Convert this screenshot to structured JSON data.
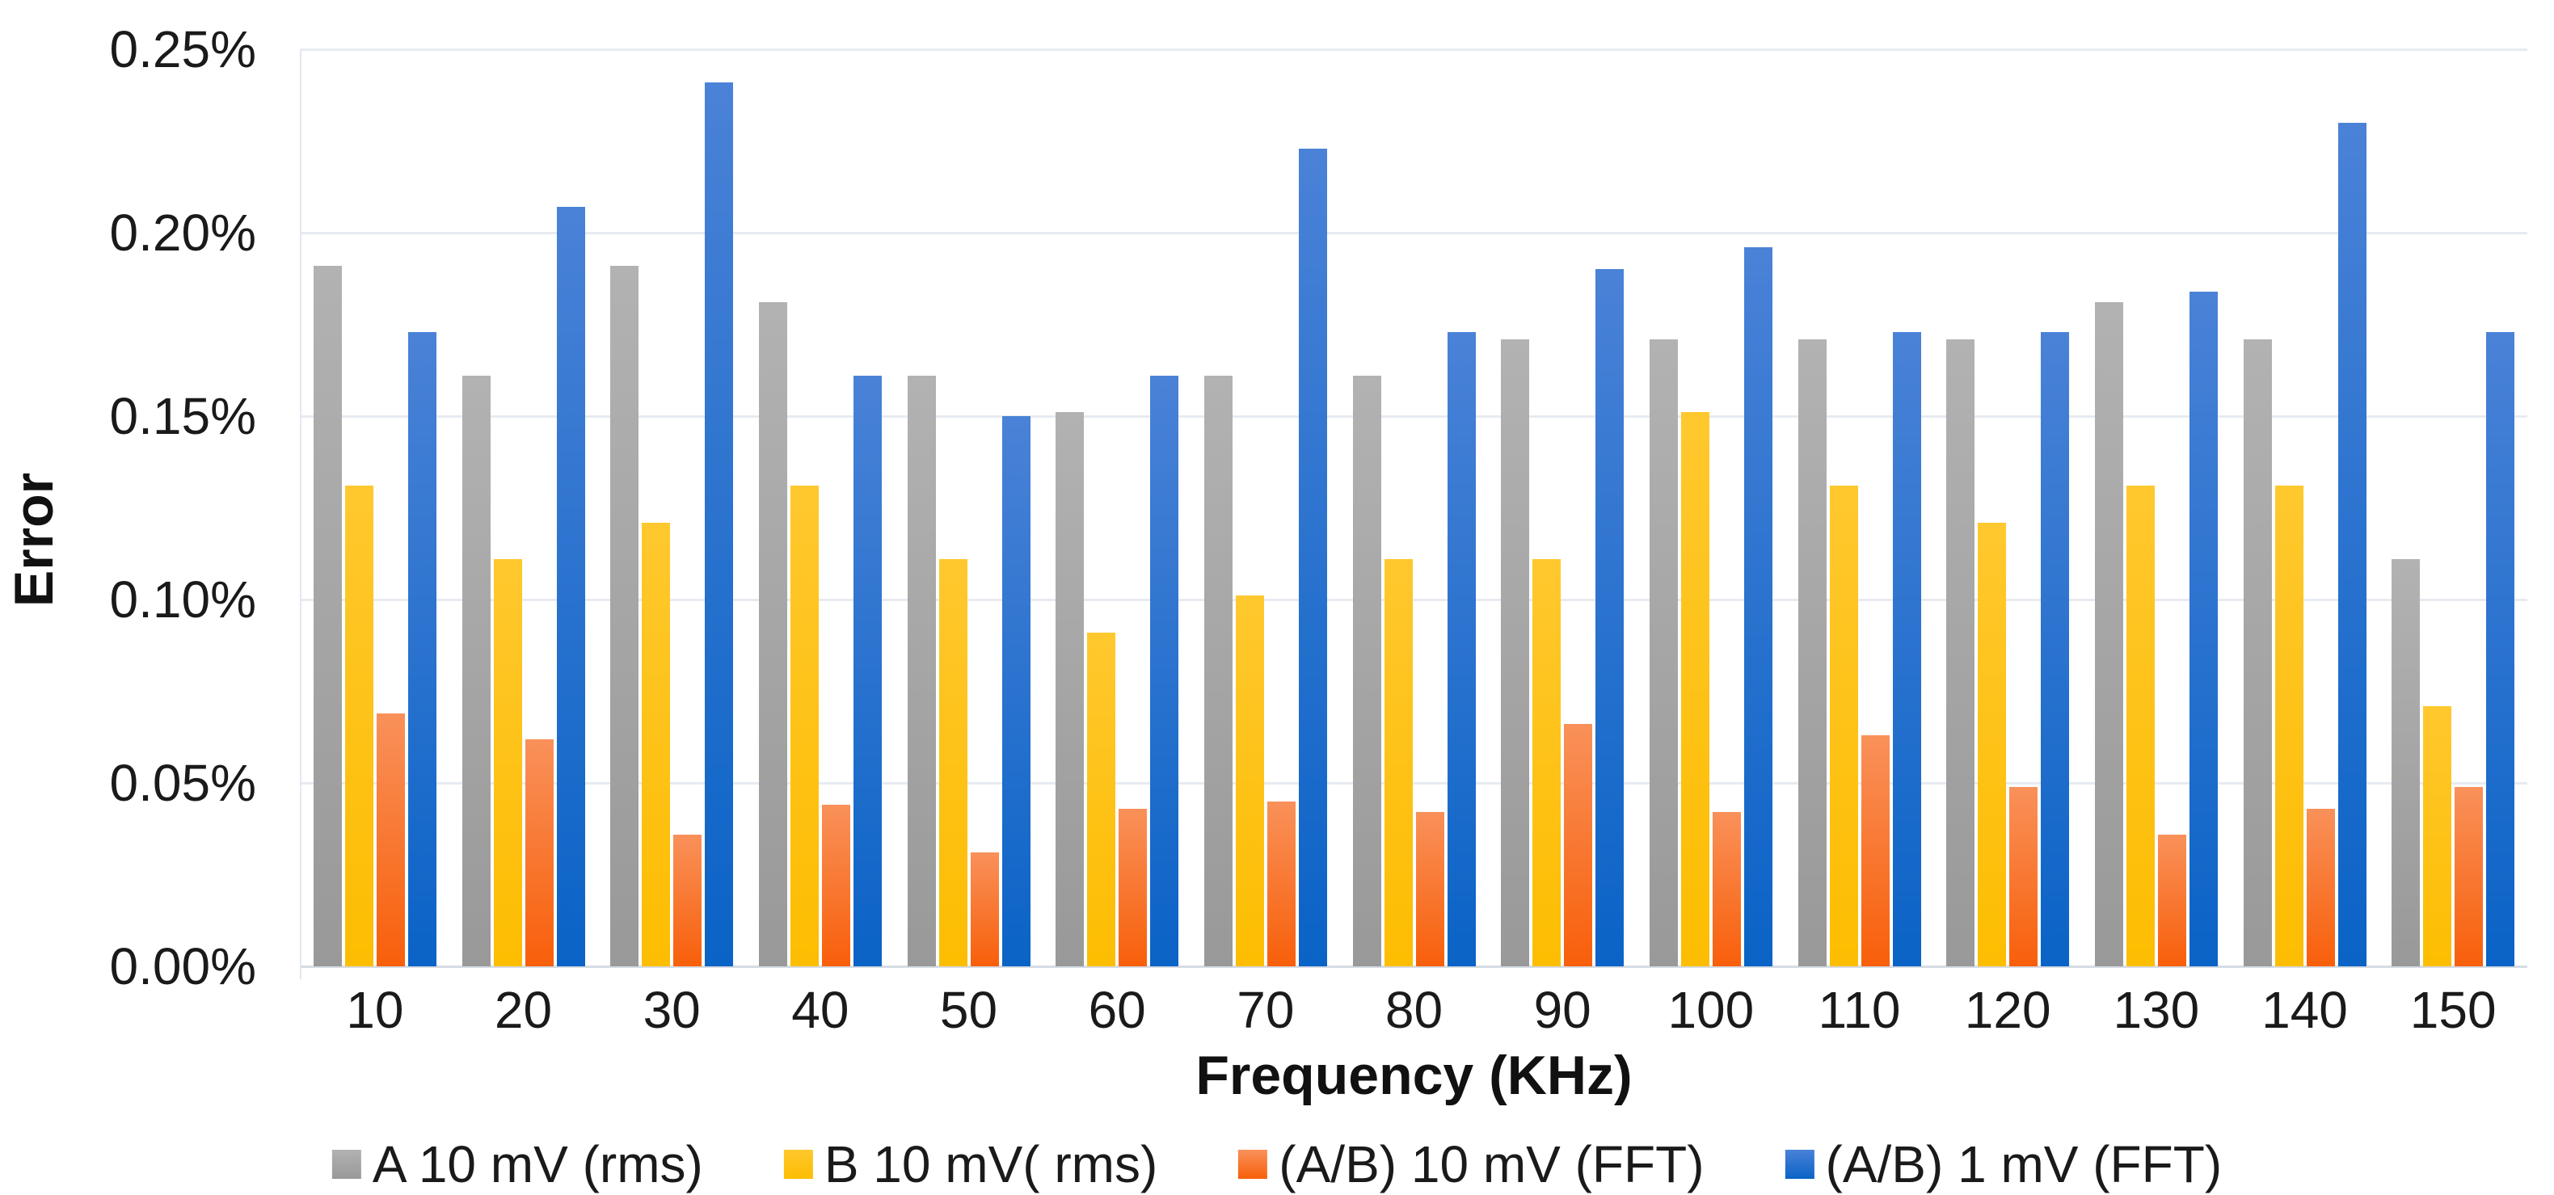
{
  "chart_data": {
    "type": "bar",
    "title": "",
    "xlabel": "Frequency (KHz)",
    "ylabel": "Error",
    "categories": [
      "10",
      "20",
      "30",
      "40",
      "50",
      "60",
      "70",
      "80",
      "90",
      "100",
      "110",
      "120",
      "130",
      "140",
      "150"
    ],
    "series": [
      {
        "name": "A 10 mV (rms)",
        "color_top": "#b2b2b2",
        "color_bottom": "#999999",
        "values": [
          0.191,
          0.161,
          0.191,
          0.181,
          0.161,
          0.151,
          0.161,
          0.161,
          0.171,
          0.171,
          0.171,
          0.171,
          0.181,
          0.171,
          0.111
        ]
      },
      {
        "name": "B 10 mV( rms)",
        "color_top": "#ffc82e",
        "color_bottom": "#fdbd01",
        "values": [
          0.131,
          0.111,
          0.121,
          0.131,
          0.111,
          0.091,
          0.101,
          0.111,
          0.111,
          0.151,
          0.131,
          0.121,
          0.131,
          0.131,
          0.071
        ]
      },
      {
        "name": "(A/B) 10 mV (FFT)",
        "color_top": "#f9915a",
        "color_bottom": "#f85f0a",
        "values": [
          0.069,
          0.062,
          0.036,
          0.044,
          0.031,
          0.043,
          0.045,
          0.042,
          0.066,
          0.042,
          0.063,
          0.049,
          0.036,
          0.043,
          0.049
        ]
      },
      {
        "name": "(A/B) 1 mV (FFT)",
        "color_top": "#4a82d7",
        "color_bottom": "#0a63c6",
        "values": [
          0.173,
          0.207,
          0.241,
          0.161,
          0.15,
          0.161,
          0.223,
          0.173,
          0.19,
          0.196,
          0.173,
          0.173,
          0.184,
          0.23,
          0.173
        ]
      }
    ],
    "y_ticks": [
      "0.00%",
      "0.05%",
      "0.10%",
      "0.15%",
      "0.20%",
      "0.25%"
    ],
    "ylim": [
      0,
      0.25
    ],
    "y_tick_step": 0.05,
    "grid": true,
    "legend_position": "bottom"
  }
}
